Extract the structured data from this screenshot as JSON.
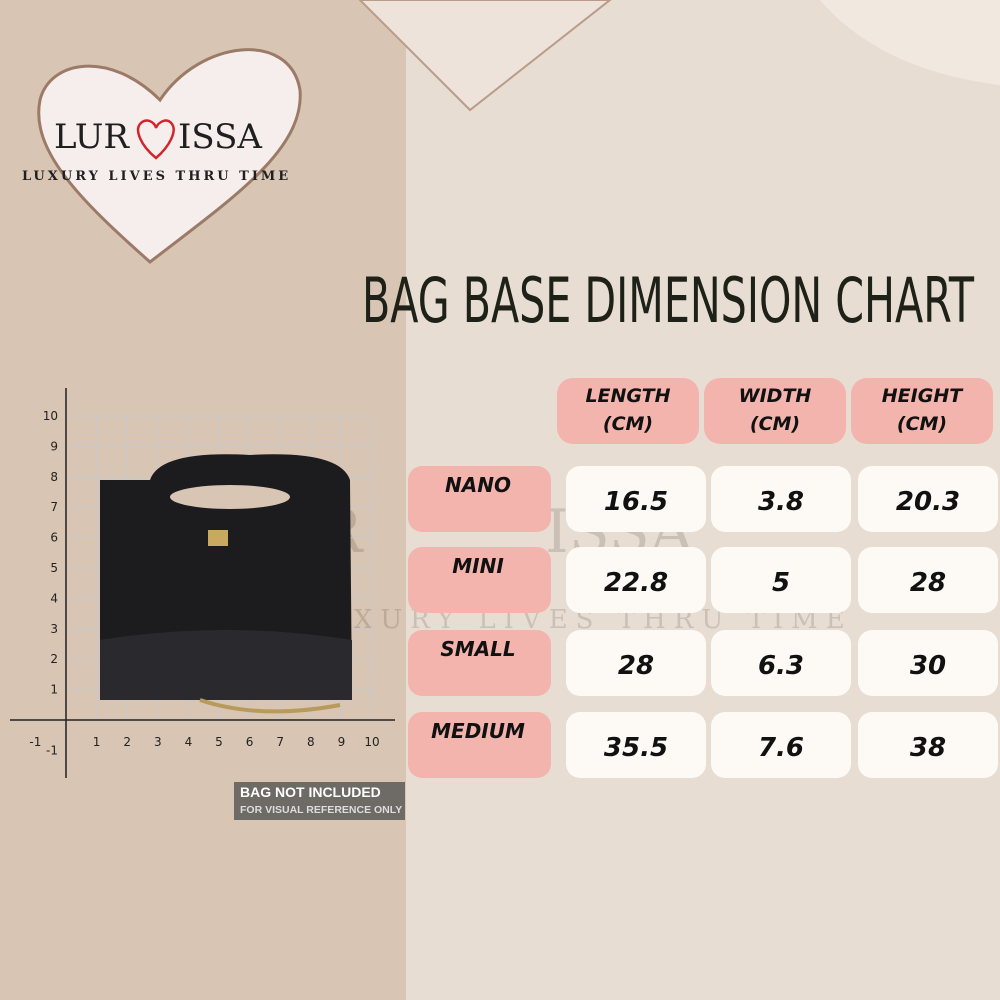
{
  "logo": {
    "name_left": "LUR",
    "name_right": "ISSA",
    "tagline": "LUXURY LIVES THRU TIME"
  },
  "title": "BAG BASE DIMENSION CHART",
  "table": {
    "columns": [
      {
        "name": "LENGTH",
        "unit": "(CM)"
      },
      {
        "name": "WIDTH",
        "unit": "(CM)"
      },
      {
        "name": "HEIGHT",
        "unit": "(CM)"
      }
    ],
    "rows": [
      {
        "label": "NANO",
        "values": [
          16.5,
          3.8,
          20.3
        ]
      },
      {
        "label": "MINI",
        "values": [
          22.8,
          5,
          28
        ]
      },
      {
        "label": "SMALL",
        "values": [
          28,
          6.3,
          30
        ]
      },
      {
        "label": "MEDIUM",
        "values": [
          35.5,
          7.6,
          38
        ]
      }
    ]
  },
  "graph": {
    "x_ticks": [
      -1,
      1,
      2,
      3,
      4,
      5,
      6,
      7,
      8,
      9,
      10
    ],
    "y_ticks": [
      -1,
      1,
      2,
      3,
      4,
      5,
      6,
      7,
      8,
      9,
      10
    ]
  },
  "badge": {
    "title": "BAG NOT INCLUDED",
    "note": "FOR VISUAL REFERENCE ONLY"
  }
}
